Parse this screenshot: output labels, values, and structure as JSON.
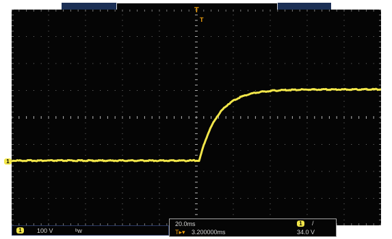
{
  "channel": {
    "number": "1",
    "scale": "100 V",
    "bandwidth_symbol": "ᵇw",
    "color": "#f2e64a"
  },
  "horizontal": {
    "scale": "20.0ms",
    "position": "3.200000ms",
    "marker_prefix": "T▸▾"
  },
  "trigger": {
    "source": "1",
    "slope": "/",
    "level": "34.0 V",
    "marker": "T",
    "color": "#f2a20e"
  },
  "signal": {
    "baseline_fraction": 0.7,
    "final_fraction": 0.37,
    "step_at_fraction": 0.508,
    "time_constant_fraction": 0.05
  }
}
